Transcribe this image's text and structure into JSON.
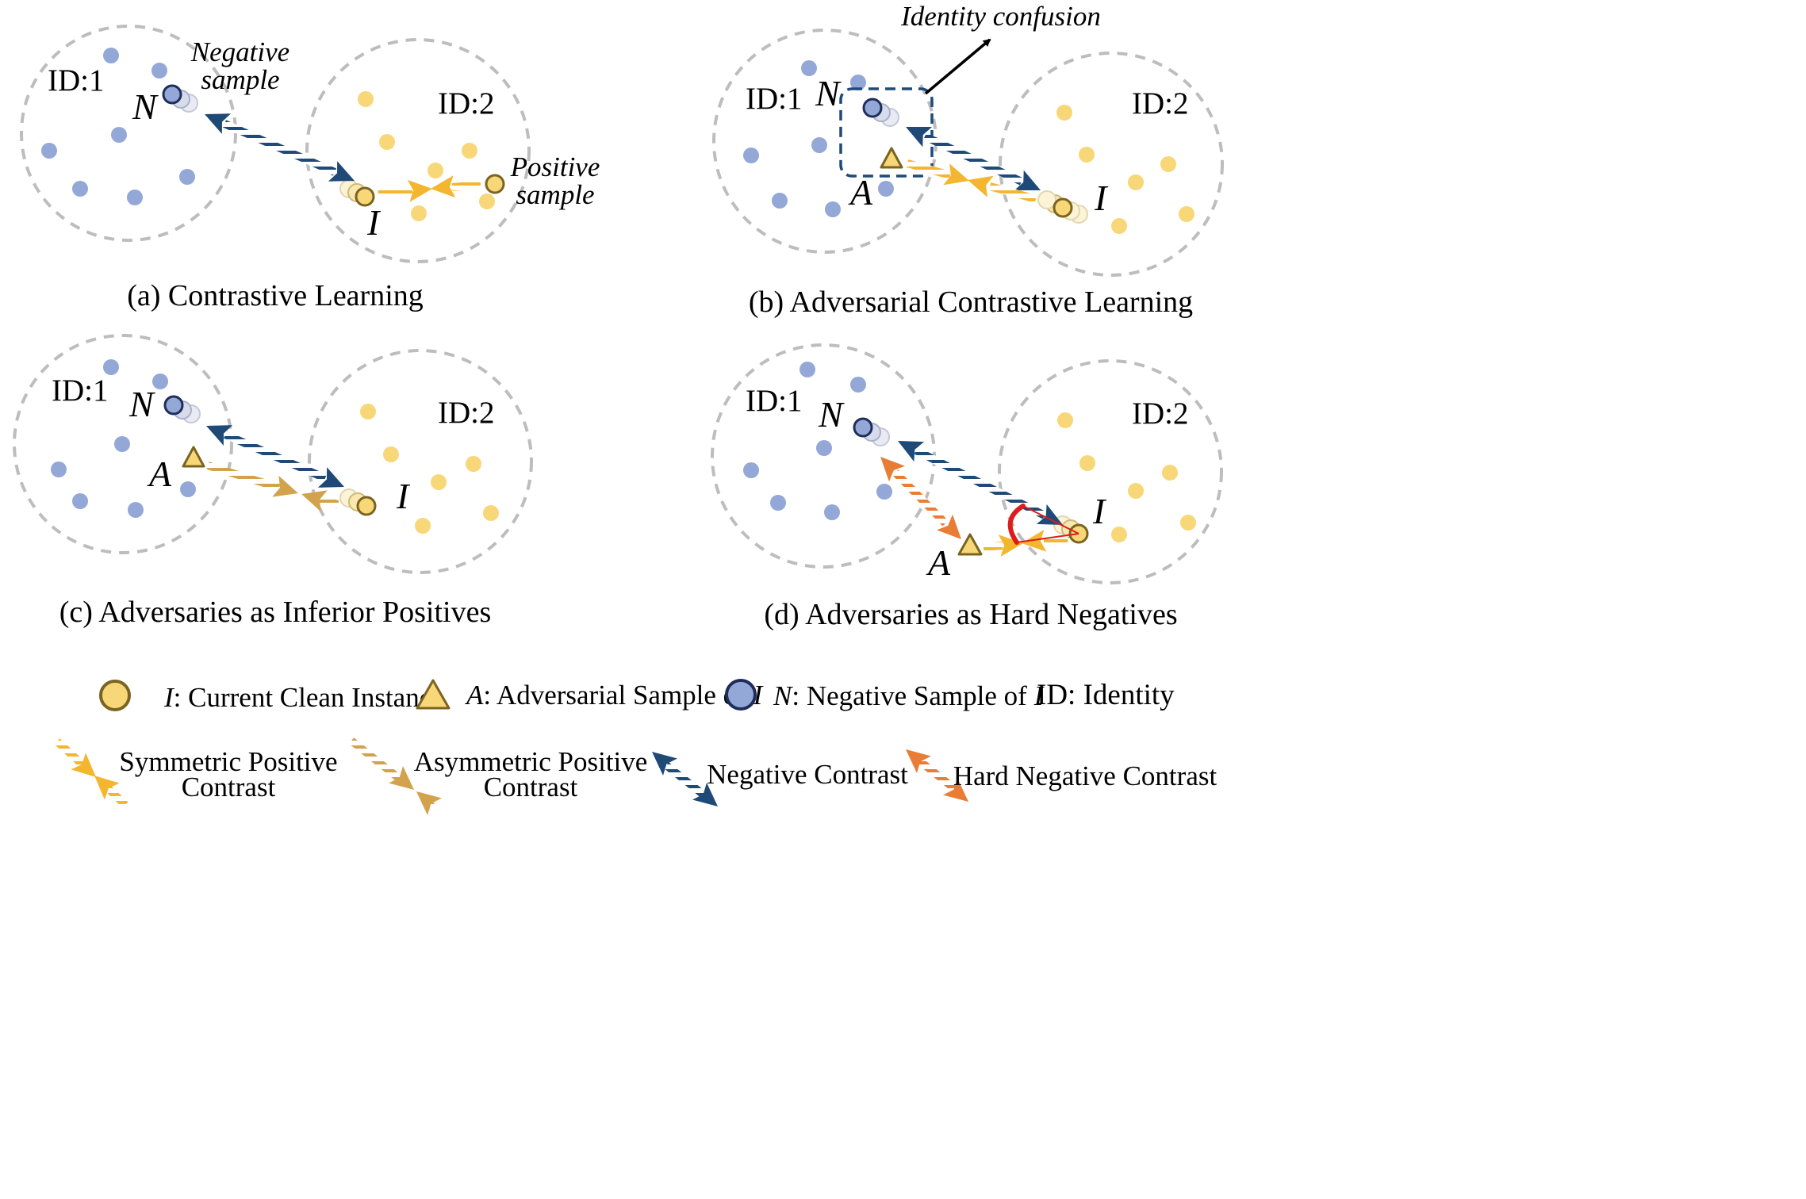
{
  "colors": {
    "negative_point": "#93a8d7",
    "negative_outline": "#1f2e59",
    "positive_point": "#f8d778",
    "positive_outline": "#7b6420",
    "negative_contrast": "#1f4a78",
    "symmetric_positive": "#f4b52f",
    "asymmetric_positive": "#d2a24c",
    "hard_negative": "#e97d35",
    "cluster_border": "#bdbdbd",
    "angle_mark": "#dd1c1c"
  },
  "panels": {
    "a": {
      "caption": "(a) Contrastive Learning",
      "cluster1_label": "ID:1",
      "cluster2_label": "ID:2",
      "n_label": "N",
      "i_label": "I",
      "negative_note": [
        "Negative",
        "sample"
      ],
      "positive_note": [
        "Positive",
        "sample"
      ]
    },
    "b": {
      "caption": "(b) Adversarial Contrastive Learning",
      "cluster1_label": "ID:1",
      "cluster2_label": "ID:2",
      "n_label": "N",
      "a_label": "A",
      "i_label": "I",
      "confusion_note": "Identity confusion"
    },
    "c": {
      "caption": "(c) Adversaries as Inferior Positives",
      "cluster1_label": "ID:1",
      "cluster2_label": "ID:2",
      "n_label": "N",
      "a_label": "A",
      "i_label": "I"
    },
    "d": {
      "caption": "(d) Adversaries as Hard Negatives",
      "cluster1_label": "ID:1",
      "cluster2_label": "ID:2",
      "n_label": "N",
      "a_label": "A",
      "i_label": "I"
    }
  },
  "legend": {
    "clean": {
      "symbol": "I",
      "text": ":  Current Clean Instance"
    },
    "adversarial": {
      "symbol": "A",
      "text_before": ": Adversarial Sample of ",
      "symbol2": "I"
    },
    "negative": {
      "symbol": "N",
      "text_before": ": Negative Sample of ",
      "symbol2": "I"
    },
    "identity": "ID: Identity",
    "symmetric": [
      "Symmetric Positive",
      "Contrast"
    ],
    "asymmetric": [
      "Asymmetric Positive",
      "Contrast"
    ],
    "neg_contrast": "Negative Contrast",
    "hard_neg_contrast": "Hard Negative Contrast"
  }
}
